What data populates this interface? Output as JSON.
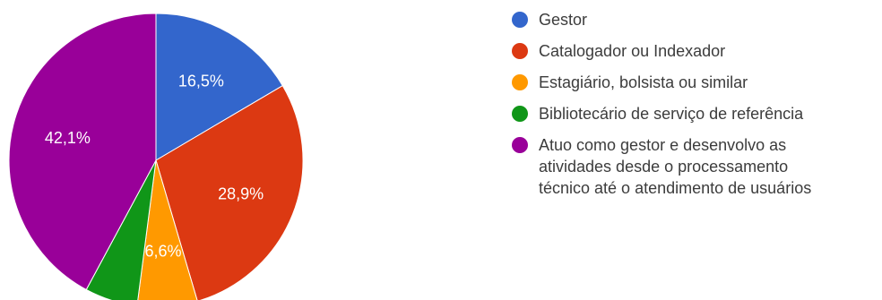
{
  "chart_data": {
    "type": "pie",
    "start_angle_deg": 90,
    "direction": "clockwise",
    "slices": [
      {
        "label": "Gestor",
        "value": 16.5,
        "value_label": "16,5%",
        "color": "#3366cc",
        "show_label": true
      },
      {
        "label": "Catalogador ou Indexador",
        "value": 28.9,
        "value_label": "28,9%",
        "color": "#dc3912",
        "show_label": true
      },
      {
        "label": "Estagiário, bolsista ou similar",
        "value": 6.6,
        "value_label": "6,6%",
        "color": "#ff9900",
        "show_label": true
      },
      {
        "label": "Bibliotecário de serviço de referência",
        "value": 5.8,
        "value_label": "",
        "color": "#109618",
        "show_label": false
      },
      {
        "label": "Atuo como gestor e desenvolvo as\natividades desde o processamento\ntécnico até o atendimento de usuários",
        "value": 42.1,
        "value_label": "42,1%",
        "color": "#990099",
        "show_label": true
      }
    ],
    "legend": {
      "position": "right",
      "items": [
        {
          "lines": [
            "Gestor"
          ],
          "color": "#3366cc"
        },
        {
          "lines": [
            "Catalogador ou Indexador"
          ],
          "color": "#dc3912"
        },
        {
          "lines": [
            "Estagiário, bolsista ou similar"
          ],
          "color": "#ff9900"
        },
        {
          "lines": [
            "Bibliotecário de serviço de referência"
          ],
          "color": "#109618"
        },
        {
          "lines": [
            "Atuo como gestor e desenvolvo as",
            "atividades desde o processamento",
            "técnico até o atendimento de usuários"
          ],
          "color": "#990099"
        }
      ]
    }
  }
}
